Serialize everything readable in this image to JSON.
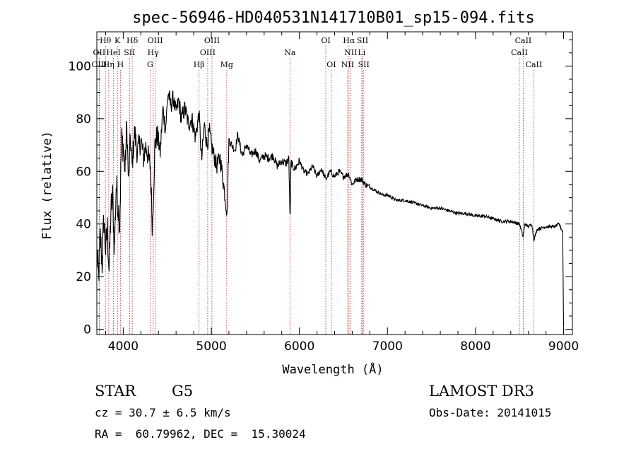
{
  "chart_data": {
    "type": "line",
    "title": "spec-56946-HD040531N141710B01_sp15-094.fits",
    "xlabel": "Wavelength (Å)",
    "ylabel": "Flux (relative)",
    "xlim": [
      3700,
      9100
    ],
    "ylim": [
      -2,
      113
    ],
    "xticks": [
      4000,
      5000,
      6000,
      7000,
      8000,
      9000
    ],
    "xtick_labels": [
      "4000",
      "5000",
      "6000",
      "7000",
      "8000",
      "9000"
    ],
    "yticks": [
      0,
      20,
      40,
      60,
      80,
      100
    ],
    "ytick_labels": [
      "0",
      "20",
      "40",
      "60",
      "80",
      "100"
    ],
    "grid": false,
    "series": [
      {
        "x": [
          3700,
          3720,
          3740,
          3760,
          3780,
          3800,
          3820,
          3840,
          3860,
          3880,
          3900,
          3920,
          3940,
          3960,
          3980,
          4000,
          4020,
          4040,
          4060,
          4080,
          4100,
          4130,
          4160,
          4200,
          4230,
          4260,
          4290,
          4310,
          4330,
          4360,
          4390,
          4420,
          4450,
          4480,
          4510,
          4540,
          4570,
          4600,
          4630,
          4660,
          4700,
          4740,
          4780,
          4820,
          4860,
          4890,
          4920,
          4950,
          4980,
          5000,
          5030,
          5060,
          5100,
          5140,
          5180,
          5200,
          5230,
          5270,
          5300,
          5350,
          5400,
          5450,
          5500,
          5550,
          5600,
          5650,
          5700,
          5750,
          5800,
          5850,
          5880,
          5895,
          5905,
          5920,
          5950,
          6000,
          6050,
          6100,
          6150,
          6200,
          6250,
          6300,
          6350,
          6400,
          6450,
          6500,
          6560,
          6600,
          6650,
          6700,
          6750,
          6800,
          6850,
          6900,
          6950,
          7000,
          7100,
          7200,
          7300,
          7400,
          7500,
          7600,
          7700,
          7800,
          7900,
          8000,
          8100,
          8200,
          8300,
          8400,
          8500,
          8540,
          8560,
          8600,
          8640,
          8662,
          8700,
          8800,
          8900,
          8950,
          8990,
          9000
        ],
        "y": [
          28,
          20,
          35,
          25,
          42,
          30,
          38,
          22,
          45,
          50,
          30,
          55,
          48,
          40,
          72,
          70,
          60,
          78,
          55,
          73,
          62,
          75,
          67,
          72,
          65,
          70,
          64,
          62,
          38,
          70,
          74,
          67,
          84,
          76,
          90,
          85,
          88,
          82,
          87,
          80,
          84,
          78,
          80,
          73,
          82,
          64,
          78,
          70,
          75,
          70,
          66,
          62,
          65,
          55,
          44,
          72,
          70,
          68,
          74,
          66,
          70,
          66,
          68,
          64,
          66,
          65,
          66,
          62,
          64,
          63,
          65,
          40,
          64,
          62,
          61,
          64,
          60,
          59,
          62,
          58,
          61,
          57,
          60,
          58,
          60,
          58,
          59,
          55,
          57,
          57,
          55,
          54,
          53,
          52,
          51,
          51,
          49,
          49,
          48,
          47,
          46,
          46,
          45,
          44,
          44,
          43,
          43,
          42,
          41,
          41,
          40,
          35,
          40,
          39,
          40,
          34,
          38,
          39,
          39,
          40,
          37,
          1
        ]
      }
    ],
    "lines": [
      {
        "name": "Hθ",
        "x": 3798,
        "row": 1
      },
      {
        "name": "K",
        "x": 3934,
        "row": 1
      },
      {
        "name": "Hδ",
        "x": 4102,
        "row": 1
      },
      {
        "name": "OIII",
        "x": 4363,
        "row": 1
      },
      {
        "name": "OIII",
        "x": 5007,
        "row": 1
      },
      {
        "name": "OI",
        "x": 6300,
        "row": 1
      },
      {
        "name": "Hα",
        "x": 6563,
        "row": 1
      },
      {
        "name": "SII",
        "x": 6717,
        "row": 1
      },
      {
        "name": "CaII",
        "x": 8542,
        "row": 1
      },
      {
        "name": "OII",
        "x": 3727,
        "row": 2
      },
      {
        "name": "HeI",
        "x": 3889,
        "row": 2
      },
      {
        "name": "SII",
        "x": 4072,
        "row": 2
      },
      {
        "name": "Hγ",
        "x": 4340,
        "row": 2
      },
      {
        "name": "OIII",
        "x": 4959,
        "row": 2
      },
      {
        "name": "Na",
        "x": 5893,
        "row": 2
      },
      {
        "name": "NII",
        "x": 6583,
        "row": 2
      },
      {
        "name": "Li",
        "x": 6708,
        "row": 2
      },
      {
        "name": "CaII",
        "x": 8498,
        "row": 2
      },
      {
        "name": "OIII",
        "x": 3727,
        "row": 3
      },
      {
        "name": "Hη",
        "x": 3835,
        "row": 3
      },
      {
        "name": "H",
        "x": 3968,
        "row": 3
      },
      {
        "name": "G",
        "x": 4305,
        "row": 3
      },
      {
        "name": "Hβ",
        "x": 4861,
        "row": 3
      },
      {
        "name": "Mg",
        "x": 5175,
        "row": 3
      },
      {
        "name": "OI",
        "x": 6363,
        "row": 3
      },
      {
        "name": "NII",
        "x": 6548,
        "row": 3
      },
      {
        "name": "SII",
        "x": 6731,
        "row": 3
      },
      {
        "name": "CaII",
        "x": 8662,
        "row": 3
      }
    ]
  },
  "info": {
    "class_label": "STAR",
    "subclass_label": "G5",
    "survey": "LAMOST DR3",
    "redshift": "cz = 30.7 ± 6.5 km/s",
    "obs_date": "Obs-Date: 20141015",
    "coords": "RA =  60.79962, DEC =  15.30024"
  }
}
